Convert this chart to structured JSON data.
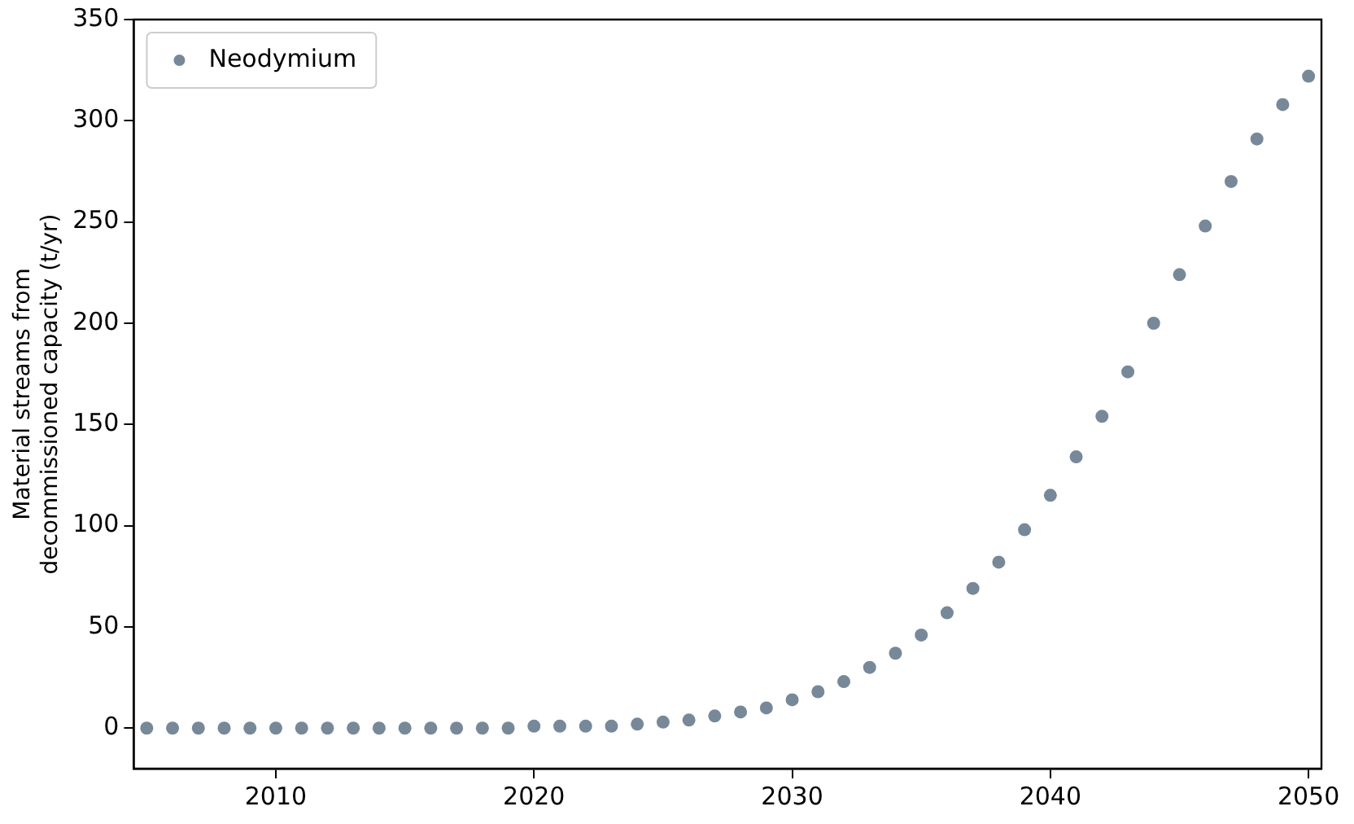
{
  "chart_data": {
    "type": "scatter",
    "ylabel": "Material streams from\ndecommissioned capacity (t/yr)",
    "x": [
      2005,
      2006,
      2007,
      2008,
      2009,
      2010,
      2011,
      2012,
      2013,
      2014,
      2015,
      2016,
      2017,
      2018,
      2019,
      2020,
      2021,
      2022,
      2023,
      2024,
      2025,
      2026,
      2027,
      2028,
      2029,
      2030,
      2031,
      2032,
      2033,
      2034,
      2035,
      2036,
      2037,
      2038,
      2039,
      2040,
      2041,
      2042,
      2043,
      2044,
      2045,
      2046,
      2047,
      2048,
      2049,
      2050
    ],
    "series": [
      {
        "name": "Neodymium",
        "color": "#778899",
        "values": [
          0,
          0,
          0,
          0,
          0,
          0,
          0,
          0,
          0,
          0,
          0,
          0,
          0,
          0,
          0,
          1,
          1,
          1,
          1,
          2,
          3,
          4,
          6,
          8,
          10,
          14,
          18,
          23,
          30,
          37,
          46,
          57,
          69,
          82,
          98,
          115,
          134,
          154,
          176,
          200,
          224,
          248,
          270,
          291,
          308,
          322
        ]
      }
    ],
    "xlim": [
      2004.5,
      2050.5
    ],
    "xticks": [
      2010,
      2020,
      2030,
      2040,
      2050
    ],
    "ylim": [
      -20,
      350
    ],
    "yticks": [
      0,
      50,
      100,
      150,
      200,
      250,
      300,
      350
    ],
    "grid": false,
    "legend": "top left",
    "marker": "circle"
  }
}
